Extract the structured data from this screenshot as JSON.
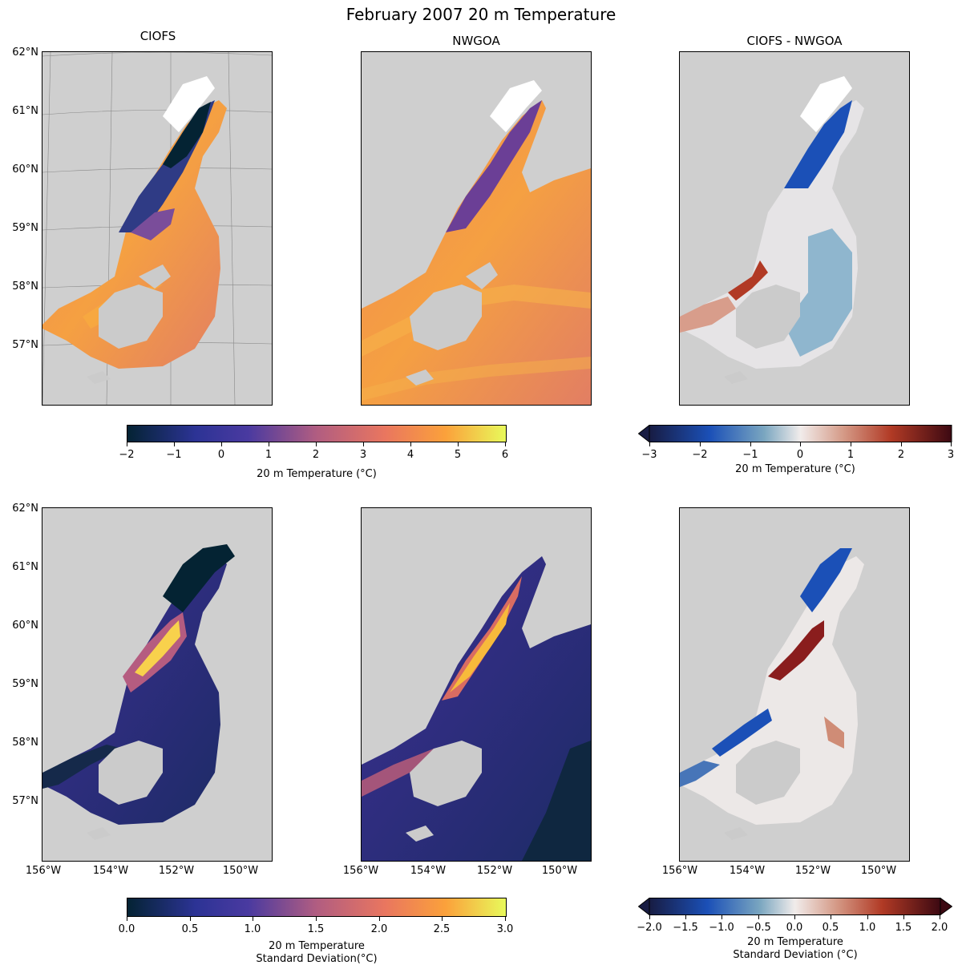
{
  "figure_title": "February 2007 20 m Temperature",
  "panel_titles": [
    "CIOFS",
    "NWGOA",
    "CIOFS - NWGOA"
  ],
  "lat_labels": [
    "62°N",
    "61°N",
    "60°N",
    "59°N",
    "58°N",
    "57°N"
  ],
  "lon_labels": [
    "156°W",
    "154°W",
    "152°W",
    "150°W"
  ],
  "colors": {
    "land": "#cbcbcb",
    "background": "#ffffff",
    "thermal_low": "#042333",
    "thermal_mid": "#b15d81",
    "thermal_high": "#e8fa5b",
    "balance_low": "#181c43",
    "balance_mid": "#f1eceb",
    "balance_high": "#3c0912"
  },
  "colorbars": {
    "temp": {
      "ticks": [
        "−2",
        "−1",
        "0",
        "1",
        "2",
        "3",
        "4",
        "5",
        "6"
      ],
      "label": "20 m Temperature (°C)"
    },
    "temp_diff": {
      "ticks": [
        "−3",
        "−2",
        "−1",
        "0",
        "1",
        "2",
        "3"
      ],
      "label": "20 m Temperature (°C)"
    },
    "std": {
      "ticks": [
        "0.0",
        "0.5",
        "1.0",
        "1.5",
        "2.0",
        "2.5",
        "3.0"
      ],
      "label_line1": "20 m Temperature",
      "label_line2": "Standard Deviation(°C)"
    },
    "std_diff": {
      "ticks": [
        "−2.0",
        "−1.5",
        "−1.0",
        "−0.5",
        "0.0",
        "0.5",
        "1.0",
        "1.5",
        "2.0"
      ],
      "label_line1": "20 m Temperature",
      "label_line2": "Standard Deviation (°C)"
    }
  }
}
